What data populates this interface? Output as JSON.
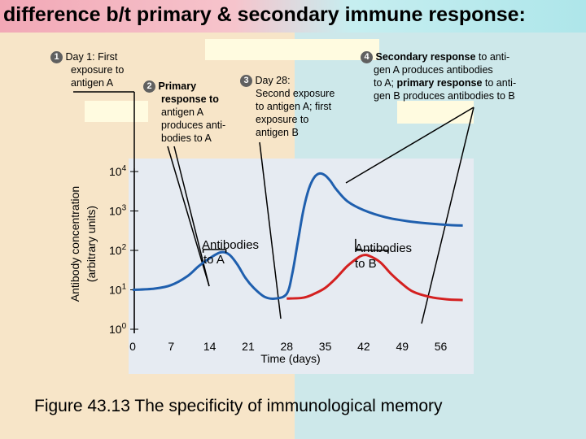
{
  "title": "difference b/t primary & secondary immune response:",
  "steps": [
    {
      "num": "1",
      "text_lines": [
        "Day 1: First",
        "exposure to",
        "antigen A"
      ]
    },
    {
      "num": "2",
      "bold": "Primary",
      "lines": [
        "response to",
        "antigen A",
        "produces anti-",
        "bodies to A"
      ]
    },
    {
      "num": "3",
      "lines": [
        "Day 28:",
        "Second exposure",
        "to antigen A; first",
        "exposure to",
        "antigen B"
      ]
    },
    {
      "num": "4",
      "line1_bold": "Secondary response",
      "line1_rest": " to anti-",
      "line2": "gen A produces antibodies",
      "line3_a": "to A; ",
      "line3_bold": "primary response",
      "line3_b": " to anti-",
      "line4": "gen B produces antibodies to B"
    }
  ],
  "chart_data": {
    "type": "line",
    "x": [
      0,
      7,
      14,
      21,
      28,
      35,
      42,
      49,
      56
    ],
    "x_tick_labels": [
      "0",
      "7",
      "14",
      "21",
      "28",
      "35",
      "42",
      "49",
      "56"
    ],
    "xlabel": "Time (days)",
    "ylabel_line1": "Antibody concentration",
    "ylabel_line2": "(arbitrary units)",
    "y_ticks": [
      {
        "base": "10",
        "exp": "4"
      },
      {
        "base": "10",
        "exp": "3"
      },
      {
        "base": "10",
        "exp": "2"
      },
      {
        "base": "10",
        "exp": "1"
      },
      {
        "base": "10",
        "exp": "0"
      }
    ],
    "y_scale": "log",
    "ylim_log10": [
      0,
      4
    ],
    "xlim": [
      0,
      60
    ],
    "series": [
      {
        "name": "Antibodies to A",
        "line1": "Antibodies",
        "line2": "to A",
        "color": "#1f5fae",
        "points": [
          [
            0,
            1
          ],
          [
            4,
            1.03
          ],
          [
            7,
            1.12
          ],
          [
            10,
            1.35
          ],
          [
            12,
            1.6
          ],
          [
            14,
            1.8
          ],
          [
            16,
            1.95
          ],
          [
            17.5,
            1.9
          ],
          [
            19,
            1.65
          ],
          [
            20.5,
            1.3
          ],
          [
            22,
            1.05
          ],
          [
            24,
            0.82
          ],
          [
            26,
            0.78
          ],
          [
            28,
            0.9
          ],
          [
            29,
            1.4
          ],
          [
            30,
            2.2
          ],
          [
            31,
            3.0
          ],
          [
            32,
            3.55
          ],
          [
            33,
            3.85
          ],
          [
            34,
            3.95
          ],
          [
            35,
            3.9
          ],
          [
            36,
            3.75
          ],
          [
            37,
            3.55
          ],
          [
            39,
            3.25
          ],
          [
            42,
            3.02
          ],
          [
            46,
            2.84
          ],
          [
            50,
            2.74
          ],
          [
            54,
            2.68
          ],
          [
            58,
            2.64
          ],
          [
            60,
            2.63
          ]
        ]
      },
      {
        "name": "Antibodies to B",
        "line1": "Antibodies",
        "line2": "to B",
        "color": "#d42020",
        "points": [
          [
            28,
            0.78
          ],
          [
            31,
            0.8
          ],
          [
            33,
            0.9
          ],
          [
            35,
            1.05
          ],
          [
            37,
            1.3
          ],
          [
            39,
            1.6
          ],
          [
            41,
            1.82
          ],
          [
            42,
            1.88
          ],
          [
            43,
            1.86
          ],
          [
            45,
            1.7
          ],
          [
            47,
            1.4
          ],
          [
            49,
            1.15
          ],
          [
            51,
            0.95
          ],
          [
            54,
            0.82
          ],
          [
            57,
            0.76
          ],
          [
            60,
            0.74
          ]
        ]
      }
    ]
  },
  "caption": "Figure 43.13 The specificity of immunological memory"
}
